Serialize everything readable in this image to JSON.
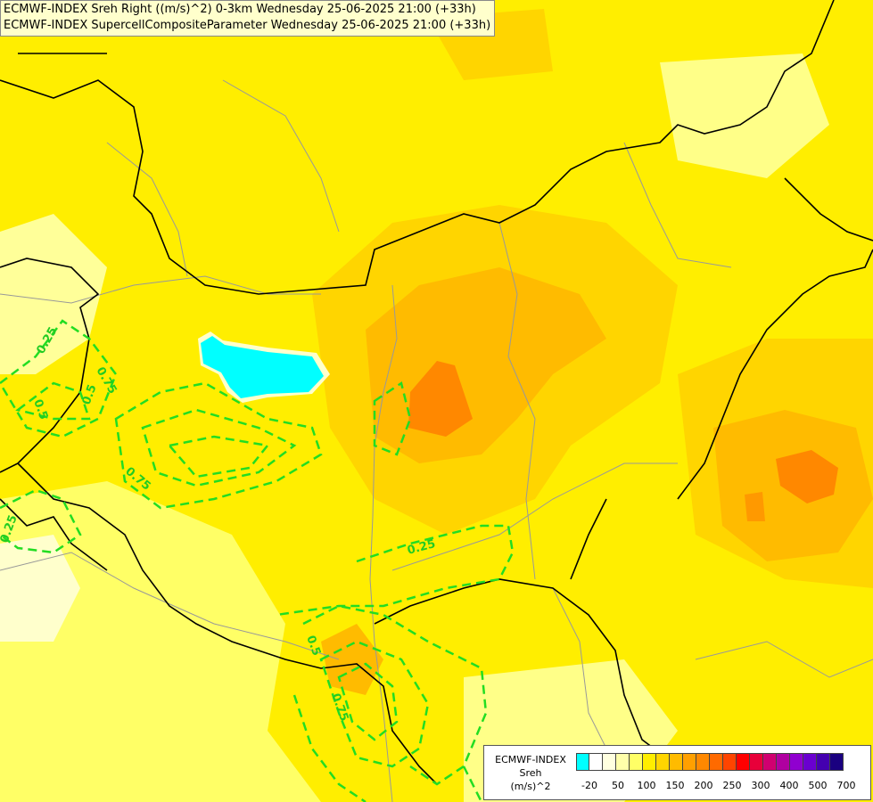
{
  "title": {
    "line1": "ECMWF-INDEX Sreh Right ((m/s)^2) 0-3km Wednesday 25-06-2025 21:00 (+33h)",
    "line2": "ECMWF-INDEX SupercellCompositeParameter Wednesday 25-06-2025 21:00 (+33h)"
  },
  "contour_labels": [
    "0.25",
    "0.5",
    "0.75",
    "0.25",
    "0.5",
    "0.75",
    "0.25",
    "0.5",
    "0.75"
  ],
  "legend": {
    "title_lines": [
      "ECMWF-INDEX",
      "Sreh",
      "(m/s)^2"
    ],
    "tick_labels": [
      "-20",
      "50",
      "100",
      "150",
      "200",
      "250",
      "300",
      "400",
      "500",
      "700"
    ],
    "swatch_colors": [
      "#00ffff",
      "#ffffff",
      "#ffffe0",
      "#ffffaa",
      "#ffff66",
      "#ffee00",
      "#ffd500",
      "#ffbb00",
      "#ffa000",
      "#ff8800",
      "#ff6a00",
      "#ff4400",
      "#ff0000",
      "#e8003a",
      "#d00070",
      "#b000a0",
      "#9000d0",
      "#6a00d0",
      "#4400b0",
      "#1a0080"
    ]
  },
  "colors": {
    "sreh_low": "#ffff66",
    "sreh_mid": "#ffee00",
    "sreh_150": "#ffd500",
    "sreh_200": "#ffbb00",
    "sreh_250": "#ff8800",
    "lake": "#00ffff",
    "scp_contour": "#22dd22",
    "border": "#000000",
    "river": "#999999"
  }
}
